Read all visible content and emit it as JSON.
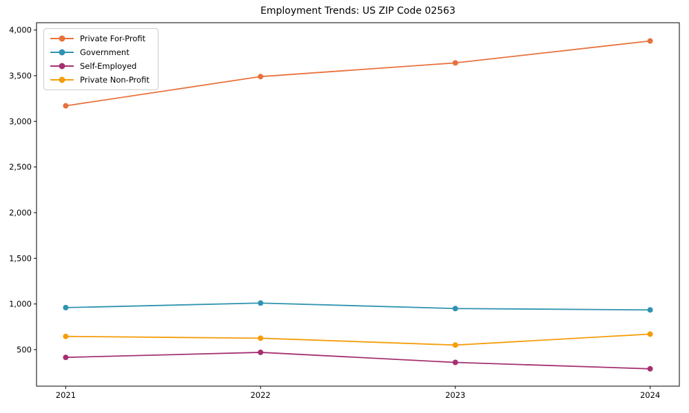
{
  "chart_data": {
    "type": "line",
    "title": "Employment Trends: US ZIP Code 02563",
    "x": [
      2021,
      2022,
      2023,
      2024
    ],
    "x_tick_labels": [
      "2021",
      "2022",
      "2023",
      "2024"
    ],
    "y_ticks": [
      500,
      1000,
      1500,
      2000,
      2500,
      3000,
      3500,
      4000
    ],
    "y_tick_labels": [
      "500",
      "1,000",
      "1,500",
      "2,000",
      "2,500",
      "3,000",
      "3,500",
      "4,000"
    ],
    "xlabel": "",
    "ylabel": "",
    "xlim": [
      2020.85,
      2024.15
    ],
    "ylim": [
      100,
      4080
    ],
    "grid": false,
    "legend_position": "upper-left",
    "axis_color": "#000000",
    "background_color": "#ffffff",
    "series": [
      {
        "name": "Private For-Profit",
        "color": "#e8713c",
        "values": [
          3170,
          3490,
          3640,
          3880
        ]
      },
      {
        "name": "Government",
        "color": "#2e93b0",
        "values": [
          960,
          1010,
          950,
          935
        ]
      },
      {
        "name": "Self-Employed",
        "color": "#a53071",
        "values": [
          415,
          470,
          360,
          290
        ]
      },
      {
        "name": "Private Non-Profit",
        "color": "#f59d0c",
        "values": [
          645,
          625,
          550,
          670
        ]
      }
    ]
  }
}
